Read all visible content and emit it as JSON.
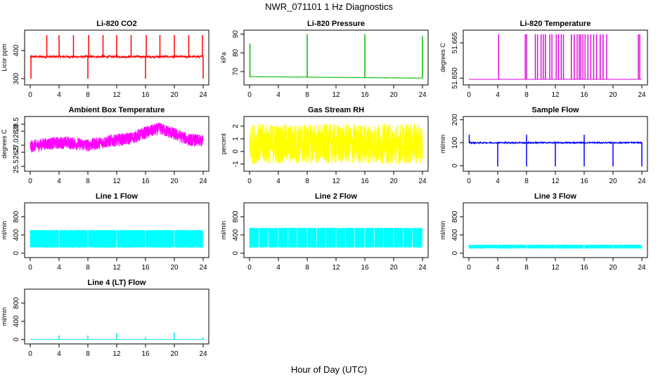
{
  "figure": {
    "title": "NWR_071101  1 Hz Diagnostics",
    "xlabel": "Hour of Day (UTC)"
  },
  "chart_data": [
    {
      "id": "co2",
      "type": "line",
      "title": "Li-820 CO2",
      "ylabel": "Licor ppm",
      "color": "#ff0000",
      "xlim": [
        0,
        24
      ],
      "ylim": [
        285,
        465
      ],
      "xticks": [
        0,
        4,
        8,
        12,
        16,
        20,
        24
      ],
      "yticks": [
        300,
        400
      ],
      "xticklabels": [
        "0",
        "4",
        "8",
        "12",
        "16",
        "20",
        "24"
      ],
      "yticklabels": [
        "300",
        "400"
      ],
      "series": [
        {
          "base": 378,
          "noise": 4,
          "spikes_up": [
            2.3,
            4.0,
            6.0,
            8.1,
            10.1,
            12.0,
            14.0,
            16.1,
            18.0,
            20.0,
            22.0,
            23.9
          ],
          "spikes_up_to": 455,
          "spikes_down": [
            0.1,
            8.0,
            16.0,
            24.0
          ],
          "spikes_down_to": 300
        }
      ]
    },
    {
      "id": "pressure",
      "type": "line",
      "title": "Li-820 Pressure",
      "ylabel": "kPa",
      "color": "#00bb00",
      "xlim": [
        0,
        24
      ],
      "ylim": [
        64,
        91
      ],
      "xticks": [
        0,
        4,
        8,
        12,
        16,
        20,
        24
      ],
      "yticks": [
        70,
        80,
        90
      ],
      "xticklabels": [
        "0",
        "4",
        "8",
        "12",
        "16",
        "20",
        "24"
      ],
      "yticklabels": [
        "70",
        "80",
        "90"
      ],
      "series": [
        {
          "start": 67.3,
          "end": 66.5,
          "noise": 0.15,
          "spikes_up": [
            0.05,
            8.0,
            16.0,
            24.0
          ],
          "spikes_up_to": [
            85,
            90,
            90,
            89
          ],
          "spikes_down": [],
          "spikes_down_to": 0
        }
      ]
    },
    {
      "id": "temperature",
      "type": "line",
      "title": "Li-820 Temperature",
      "ylabel": "degrees C",
      "color": "#dd00dd",
      "xlim": [
        0,
        24
      ],
      "ylim": [
        51.648,
        51.6695
      ],
      "xticks": [
        0,
        4,
        8,
        12,
        16,
        20,
        24
      ],
      "yticks": [
        51.65,
        51.665
      ],
      "xticklabels": [
        "0",
        "4",
        "8",
        "12",
        "16",
        "20",
        "24"
      ],
      "yticklabels": [
        "51.650",
        "51.665"
      ],
      "series": [
        {
          "base": 51.6495,
          "high": 51.6685,
          "steps": [
            4.1,
            7.8,
            8.0,
            9.2,
            9.5,
            10.0,
            10.3,
            10.6,
            11.2,
            11.5,
            12.1,
            12.4,
            12.8,
            13.1,
            14.2,
            14.6,
            15.0,
            15.3,
            15.5,
            15.8,
            16.1,
            16.5,
            16.9,
            17.3,
            17.7,
            18.2,
            18.6,
            19.1,
            23.5,
            23.7
          ]
        }
      ]
    },
    {
      "id": "ambient",
      "type": "line",
      "title": "Ambient Box Temperature",
      "ylabel": "degrees C",
      "color": "#ff00ff",
      "xlim": [
        0,
        24
      ],
      "ylim": [
        25.3,
        28.9
      ],
      "xticks": [
        0,
        4,
        8,
        12,
        16,
        20,
        24
      ],
      "yticks": [
        25.5,
        26.5,
        27.0,
        28.0,
        28.5
      ],
      "xticklabels": [
        "0",
        "4",
        "8",
        "12",
        "16",
        "20",
        "24"
      ],
      "yticklabels": [
        "25.5",
        "26.5",
        "27.0",
        "28.0",
        "28.5"
      ],
      "series": [
        {
          "trend_x": [
            0,
            2,
            5,
            8,
            11,
            14,
            16,
            18,
            20,
            22,
            24
          ],
          "trend_y": [
            26.9,
            27.1,
            27.2,
            27.0,
            27.3,
            27.5,
            27.9,
            28.2,
            27.8,
            27.4,
            27.3
          ],
          "noise": 0.45
        }
      ]
    },
    {
      "id": "rh",
      "type": "line",
      "title": "Gas Stream RH",
      "ylabel": "percent",
      "color": "#ffff00",
      "xlim": [
        0,
        24
      ],
      "ylim": [
        -1.4,
        2.6
      ],
      "xticks": [
        0,
        4,
        8,
        12,
        16,
        20,
        24
      ],
      "yticks": [
        -1,
        0,
        1,
        2
      ],
      "xticklabels": [
        "0",
        "4",
        "8",
        "12",
        "16",
        "20",
        "24"
      ],
      "yticklabels": [
        "-1",
        "0",
        "1",
        "2"
      ],
      "series": [
        {
          "base": 0.6,
          "noise": 1.6
        }
      ]
    },
    {
      "id": "sample",
      "type": "line",
      "title": "Sample Flow",
      "ylabel": "ml/min",
      "color": "#0000ff",
      "xlim": [
        0,
        24
      ],
      "ylim": [
        -15,
        205
      ],
      "xticks": [
        0,
        4,
        8,
        12,
        16,
        20,
        24
      ],
      "yticks": [
        0,
        100,
        200
      ],
      "xticklabels": [
        "0",
        "4",
        "8",
        "12",
        "16",
        "20",
        "24"
      ],
      "yticklabels": [
        "0",
        "100",
        "200"
      ],
      "series": [
        {
          "base": 100,
          "noise": 3,
          "spikes_up": [
            0.05,
            8.0,
            16.0
          ],
          "spikes_up_to": 135,
          "spikes_down": [
            4.0,
            8.0,
            12.0,
            16.0,
            20.0,
            24.0
          ],
          "spikes_down_to": -3
        }
      ]
    },
    {
      "id": "line1",
      "type": "line",
      "title": "Line 1 Flow",
      "ylabel": "ml/min",
      "color": "#00ffff",
      "xlim": [
        0,
        24
      ],
      "ylim": [
        -50,
        1060
      ],
      "xticks": [
        0,
        4,
        8,
        12,
        16,
        20,
        24
      ],
      "yticks": [
        0,
        400,
        800
      ],
      "xticklabels": [
        "0",
        "4",
        "8",
        "12",
        "16",
        "20",
        "24"
      ],
      "yticklabels": [
        "0",
        "400",
        "800"
      ],
      "series": [
        {
          "band_low": 120,
          "band_high": 510,
          "gaps": [
            4.0,
            8.0,
            12.0,
            16.0,
            20.0,
            24.0
          ]
        }
      ]
    },
    {
      "id": "line2",
      "type": "line",
      "title": "Line 2 Flow",
      "ylabel": "ml/min",
      "color": "#00ffff",
      "xlim": [
        0,
        24
      ],
      "ylim": [
        -50,
        1060
      ],
      "xticks": [
        0,
        4,
        8,
        12,
        16,
        20,
        24
      ],
      "yticks": [
        0,
        400,
        800
      ],
      "xticklabels": [
        "0",
        "4",
        "8",
        "12",
        "16",
        "20",
        "24"
      ],
      "yticklabels": [
        "0",
        "400",
        "800"
      ],
      "series": [
        {
          "band_low": 120,
          "band_high": 560,
          "gaps": [
            1.3,
            2.6,
            4.0,
            5.3,
            6.6,
            8.0,
            9.3,
            10.6,
            12.0,
            13.3,
            14.6,
            16.0,
            17.3,
            18.6,
            20.0,
            21.3,
            22.6,
            24.0
          ]
        }
      ]
    },
    {
      "id": "line3",
      "type": "line",
      "title": "Line 3 Flow",
      "ylabel": "ml/min",
      "color": "#00ffff",
      "xlim": [
        0,
        24
      ],
      "ylim": [
        -50,
        1060
      ],
      "xticks": [
        0,
        4,
        8,
        12,
        16,
        20,
        24
      ],
      "yticks": [
        0,
        400,
        800
      ],
      "xticklabels": [
        "0",
        "4",
        "8",
        "12",
        "16",
        "20",
        "24"
      ],
      "yticklabels": [
        "0",
        "400",
        "800"
      ],
      "series": [
        {
          "band_low": 100,
          "band_high": 190,
          "gaps": [
            4.0,
            8.0,
            12.0,
            16.0,
            20.0,
            24.0
          ]
        }
      ]
    },
    {
      "id": "line4",
      "type": "line",
      "title": "Line 4 (LT) Flow",
      "ylabel": "ml/min",
      "color": "#00e0e0",
      "xlim": [
        0,
        24
      ],
      "ylim": [
        -50,
        1060
      ],
      "xticks": [
        0,
        4,
        8,
        12,
        16,
        20,
        24
      ],
      "yticks": [
        0,
        400,
        800
      ],
      "xticklabels": [
        "0",
        "4",
        "8",
        "12",
        "16",
        "20",
        "24"
      ],
      "yticklabels": [
        "0",
        "400",
        "800"
      ],
      "series": [
        {
          "base": 2,
          "noise": 0,
          "spikes_up": [
            4.0,
            8.0,
            12.0,
            16.0,
            20.0,
            24.0
          ],
          "spikes_up_to": [
            90,
            90,
            140,
            60,
            150,
            50
          ],
          "spikes_down": [],
          "spikes_down_to": 0
        }
      ]
    }
  ]
}
